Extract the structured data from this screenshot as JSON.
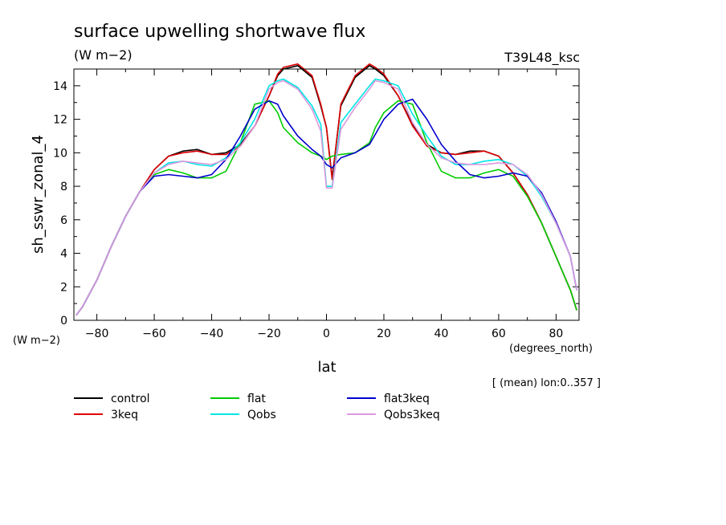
{
  "chart_data": {
    "type": "line",
    "title": "surface upwelling shortwave flux",
    "units": "(W m−2)",
    "run_label": "T39L48_ksc",
    "ylabel": "sh_sswr_zonal_4",
    "ylabel_units": "(W m−2)",
    "xlabel": "lat",
    "xlabel_units": "(degrees_north)",
    "note": "[ (mean) lon:0..357 ]",
    "xlim": [
      -88,
      88
    ],
    "ylim": [
      0,
      15
    ],
    "xticks": [
      -80,
      -60,
      -40,
      -20,
      0,
      20,
      40,
      60,
      80
    ],
    "yticks": [
      0,
      2,
      4,
      6,
      8,
      10,
      12,
      14
    ],
    "grid": false,
    "legend_position": "bottom",
    "x": [
      -87.2,
      -85,
      -80,
      -75,
      -70,
      -65,
      -60,
      -55,
      -50,
      -45,
      -40,
      -35,
      -30,
      -25,
      -20,
      -17,
      -15,
      -10,
      -5,
      -2,
      0,
      2,
      5,
      10,
      15,
      17,
      20,
      25,
      30,
      35,
      40,
      45,
      50,
      55,
      60,
      65,
      70,
      75,
      80,
      85,
      87.2
    ],
    "series": [
      {
        "name": "control",
        "color": "#000000",
        "values": [
          0.3,
          0.8,
          2.4,
          4.4,
          6.2,
          7.7,
          9.0,
          9.8,
          10.1,
          10.2,
          9.9,
          10.0,
          10.5,
          11.6,
          13.4,
          14.6,
          15.0,
          15.2,
          14.5,
          12.8,
          11.5,
          8.5,
          12.8,
          14.5,
          15.2,
          15.0,
          14.6,
          13.4,
          11.7,
          10.5,
          10.0,
          9.9,
          10.1,
          10.1,
          9.8,
          8.8,
          7.5,
          5.8,
          3.8,
          1.8,
          0.6
        ]
      },
      {
        "name": "3keq",
        "color": "#dd0000",
        "values": [
          0.3,
          0.8,
          2.4,
          4.4,
          6.2,
          7.7,
          9.0,
          9.8,
          10.0,
          10.1,
          9.9,
          9.9,
          10.4,
          11.6,
          13.4,
          14.7,
          15.1,
          15.3,
          14.6,
          12.9,
          11.5,
          8.4,
          12.9,
          14.6,
          15.3,
          15.1,
          14.7,
          13.4,
          11.6,
          10.4,
          10.0,
          9.9,
          10.0,
          10.1,
          9.8,
          8.8,
          7.5,
          5.8,
          3.8,
          1.8,
          0.6
        ]
      },
      {
        "name": "flat",
        "color": "#00cc00",
        "values": [
          0.3,
          0.8,
          2.4,
          4.4,
          6.2,
          7.7,
          8.7,
          9.0,
          8.8,
          8.5,
          8.5,
          8.9,
          10.6,
          12.9,
          13.1,
          12.4,
          11.5,
          10.6,
          10.0,
          9.8,
          9.6,
          9.8,
          9.9,
          10.0,
          10.6,
          11.5,
          12.4,
          13.1,
          12.9,
          10.6,
          8.9,
          8.5,
          8.5,
          8.8,
          9.0,
          8.6,
          7.4,
          5.8,
          3.8,
          1.8,
          0.6
        ]
      },
      {
        "name": "Qobs",
        "color": "#00e5e5",
        "values": [
          0.3,
          0.8,
          2.4,
          4.4,
          6.2,
          7.7,
          8.8,
          9.4,
          9.5,
          9.3,
          9.2,
          9.7,
          10.6,
          12.0,
          14.0,
          14.3,
          14.4,
          13.9,
          12.8,
          11.7,
          8.0,
          8.0,
          11.8,
          12.9,
          14.0,
          14.4,
          14.3,
          14.0,
          12.3,
          11.0,
          9.8,
          9.3,
          9.3,
          9.5,
          9.6,
          9.3,
          8.6,
          7.4,
          5.8,
          3.8,
          1.8
        ]
      },
      {
        "name": "flat3keq",
        "color": "#0000cc",
        "values": [
          0.3,
          0.8,
          2.4,
          4.4,
          6.2,
          7.7,
          8.6,
          8.7,
          8.6,
          8.5,
          8.7,
          9.6,
          11.0,
          12.6,
          13.1,
          12.9,
          12.2,
          11.0,
          10.2,
          9.8,
          9.3,
          9.1,
          9.7,
          10.0,
          10.5,
          11.1,
          12.0,
          12.9,
          13.2,
          12.0,
          10.5,
          9.5,
          8.7,
          8.5,
          8.6,
          8.8,
          8.6,
          7.6,
          5.9,
          3.8,
          1.8
        ]
      },
      {
        "name": "Qobs3keq",
        "color": "#dd99dd",
        "values": [
          0.3,
          0.8,
          2.4,
          4.4,
          6.2,
          7.7,
          8.8,
          9.3,
          9.5,
          9.4,
          9.3,
          9.6,
          10.4,
          11.6,
          13.8,
          14.2,
          14.3,
          13.8,
          12.6,
          11.3,
          7.9,
          7.9,
          11.4,
          12.7,
          13.8,
          14.3,
          14.2,
          13.8,
          11.8,
          10.5,
          9.7,
          9.4,
          9.3,
          9.3,
          9.4,
          9.3,
          8.7,
          7.5,
          5.8,
          3.8,
          1.8
        ]
      }
    ]
  }
}
